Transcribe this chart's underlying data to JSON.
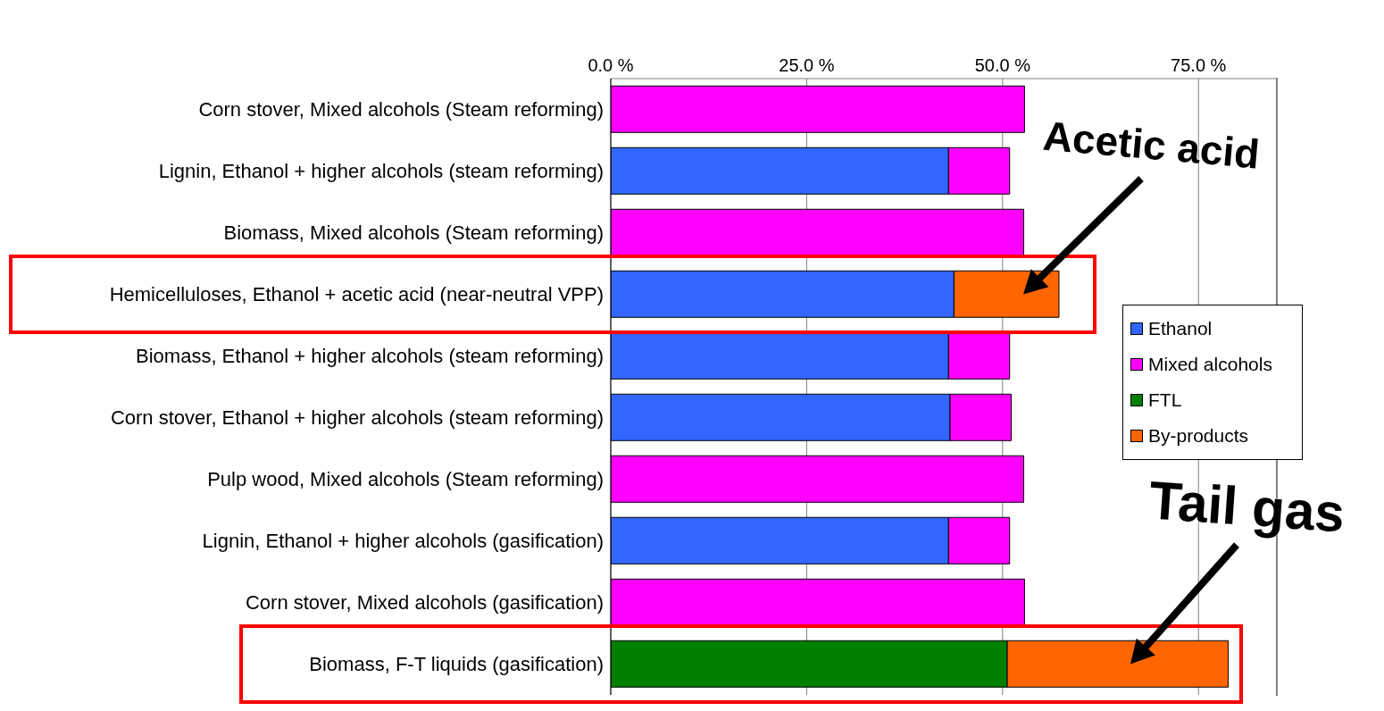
{
  "chart_data": {
    "type": "bar",
    "orientation": "horizontal",
    "stacked": true,
    "categories": [
      "Corn stover, Mixed alcohols (Steam reforming)",
      "Lignin, Ethanol + higher alcohols (steam reforming)",
      "Biomass, Mixed alcohols (Steam reforming)",
      "Hemicelluloses, Ethanol + acetic acid (near-neutral VPP)",
      "Biomass, Ethanol + higher alcohols (steam reforming)",
      "Corn stover, Ethanol + higher alcohols (steam reforming)",
      "Pulp wood, Mixed alcohols (Steam reforming)",
      "Lignin, Ethanol + higher alcohols (gasification)",
      "Corn stover, Mixed alcohols (gasification)",
      "Biomass, F-T liquids (gasification)"
    ],
    "series": [
      {
        "name": "Ethanol",
        "color": "#3366ff",
        "values": [
          null,
          43.1,
          null,
          43.8,
          43.1,
          43.3,
          null,
          43.1,
          null,
          null
        ]
      },
      {
        "name": "Mixed alcohols",
        "color": "#ff00ff",
        "values": [
          52.8,
          7.8,
          52.7,
          null,
          7.8,
          7.8,
          52.7,
          7.8,
          52.8,
          null
        ]
      },
      {
        "name": "FTL",
        "color": "#008000",
        "values": [
          null,
          null,
          null,
          null,
          null,
          null,
          null,
          null,
          null,
          50.6
        ]
      },
      {
        "name": "By-products",
        "color": "#ff6600",
        "values": [
          null,
          null,
          null,
          13.4,
          null,
          null,
          null,
          null,
          null,
          28.2
        ]
      }
    ],
    "xlim": [
      0,
      85
    ],
    "xticks": [
      {
        "value": 0,
        "label": "0.0 %"
      },
      {
        "value": 25,
        "label": "25.0 %"
      },
      {
        "value": 50,
        "label": "50.0 %"
      },
      {
        "value": 75,
        "label": "75.0 %"
      }
    ],
    "grid": "x",
    "legend": "right",
    "annotations": [
      "Acetic acid",
      "Tail gas"
    ]
  }
}
